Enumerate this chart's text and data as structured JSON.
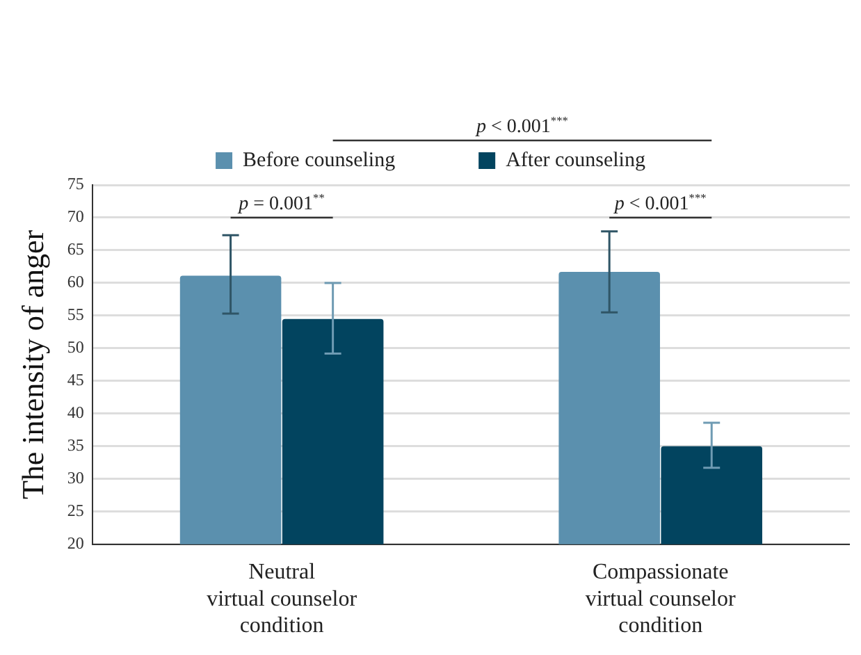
{
  "chart_data": {
    "type": "bar",
    "ylabel": "The intensity of anger",
    "categories": [
      "Neutral\nvirtual counselor\ncondition",
      "Compassionate\nvirtual counselor\ncondition"
    ],
    "series": [
      {
        "name": "Before counseling",
        "color": "#5b90ae",
        "values": [
          61.1,
          61.7
        ],
        "errors": [
          [
            55.3,
            67.3
          ],
          [
            55.5,
            67.9
          ]
        ]
      },
      {
        "name": "After counseling",
        "color": "#02445f",
        "values": [
          54.5,
          35.0
        ],
        "errors": [
          [
            49.2,
            60.0
          ],
          [
            31.7,
            38.6
          ]
        ]
      }
    ],
    "ylim": [
      20,
      75
    ],
    "yticks": [
      20,
      25,
      30,
      35,
      40,
      45,
      50,
      55,
      60,
      65,
      70,
      75
    ],
    "grid": "y",
    "legend": "top",
    "annotations": [
      "p = 0.001$^{**}$",
      "p < 0.001$^{***}$",
      "p < 0.001$^{***}$"
    ]
  }
}
